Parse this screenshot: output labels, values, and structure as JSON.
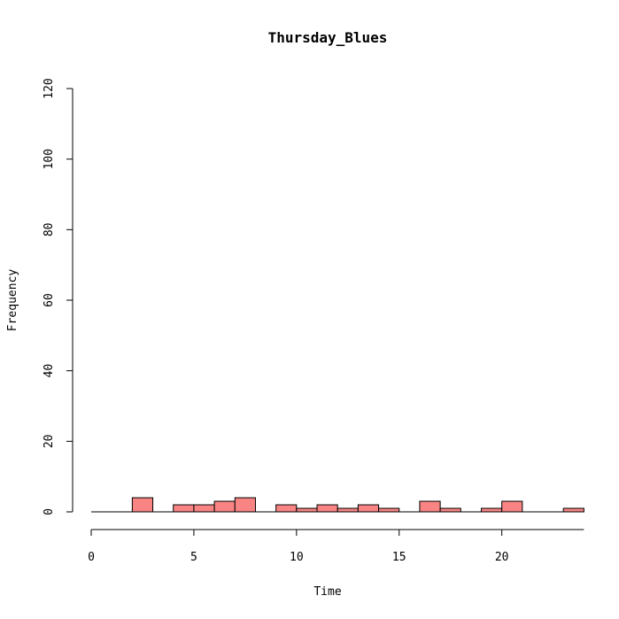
{
  "chart_data": {
    "type": "bar",
    "title": "Thursday_Blues",
    "xlabel": "Time",
    "ylabel": "Frequency",
    "xlim": [
      0,
      24
    ],
    "ylim": [
      0,
      120
    ],
    "x_ticks": [
      0,
      5,
      10,
      15,
      20
    ],
    "y_ticks": [
      0,
      20,
      40,
      60,
      80,
      100,
      120
    ],
    "bar_color": "#f88483",
    "bin_width": 1,
    "bins": [
      {
        "start": 0,
        "count": 0
      },
      {
        "start": 1,
        "count": 0
      },
      {
        "start": 2,
        "count": 4
      },
      {
        "start": 3,
        "count": 0
      },
      {
        "start": 4,
        "count": 2
      },
      {
        "start": 5,
        "count": 2
      },
      {
        "start": 6,
        "count": 3
      },
      {
        "start": 7,
        "count": 4
      },
      {
        "start": 8,
        "count": 0
      },
      {
        "start": 9,
        "count": 2
      },
      {
        "start": 10,
        "count": 1
      },
      {
        "start": 11,
        "count": 2
      },
      {
        "start": 12,
        "count": 1
      },
      {
        "start": 13,
        "count": 2
      },
      {
        "start": 14,
        "count": 1
      },
      {
        "start": 15,
        "count": 0
      },
      {
        "start": 16,
        "count": 3
      },
      {
        "start": 17,
        "count": 1
      },
      {
        "start": 18,
        "count": 0
      },
      {
        "start": 19,
        "count": 1
      },
      {
        "start": 20,
        "count": 3
      },
      {
        "start": 21,
        "count": 0
      },
      {
        "start": 22,
        "count": 0
      },
      {
        "start": 23,
        "count": 1
      }
    ]
  }
}
